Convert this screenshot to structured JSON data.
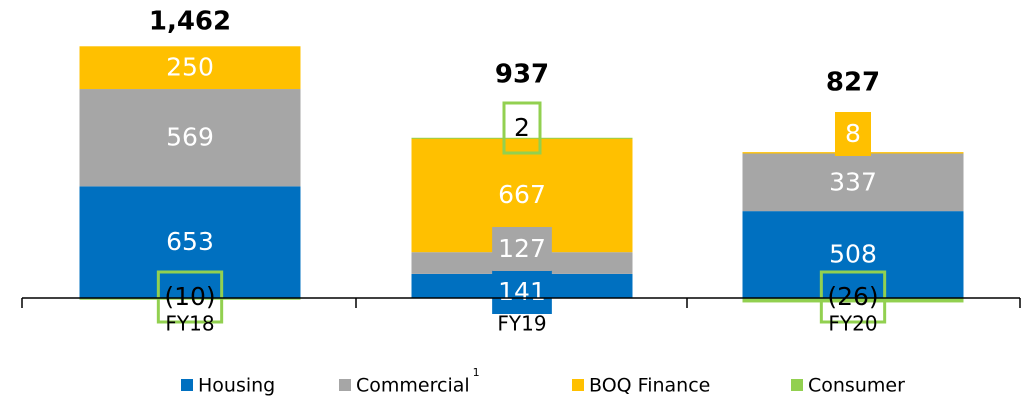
{
  "chart_data": {
    "type": "stacked_bar",
    "categories": [
      "FY18",
      "FY19",
      "FY20"
    ],
    "series": [
      {
        "name": "Housing",
        "color": "#0070c0",
        "values": [
          653,
          141,
          508
        ]
      },
      {
        "name": "Commercial",
        "footnote": "1",
        "color": "#a6a6a6",
        "values": [
          569,
          127,
          337
        ]
      },
      {
        "name": "BOQ Finance",
        "color": "#ffc000",
        "values": [
          250,
          667,
          8
        ]
      },
      {
        "name": "Consumer",
        "color": "#92d050",
        "values": [
          -10,
          2,
          -26
        ],
        "value_labels": [
          "(10)",
          "2",
          "(26)"
        ]
      }
    ],
    "totals": [
      1462,
      937,
      827
    ],
    "total_labels": [
      "1,462",
      "937",
      "827"
    ],
    "ylim": [
      -100,
      1600
    ],
    "grid": false
  }
}
